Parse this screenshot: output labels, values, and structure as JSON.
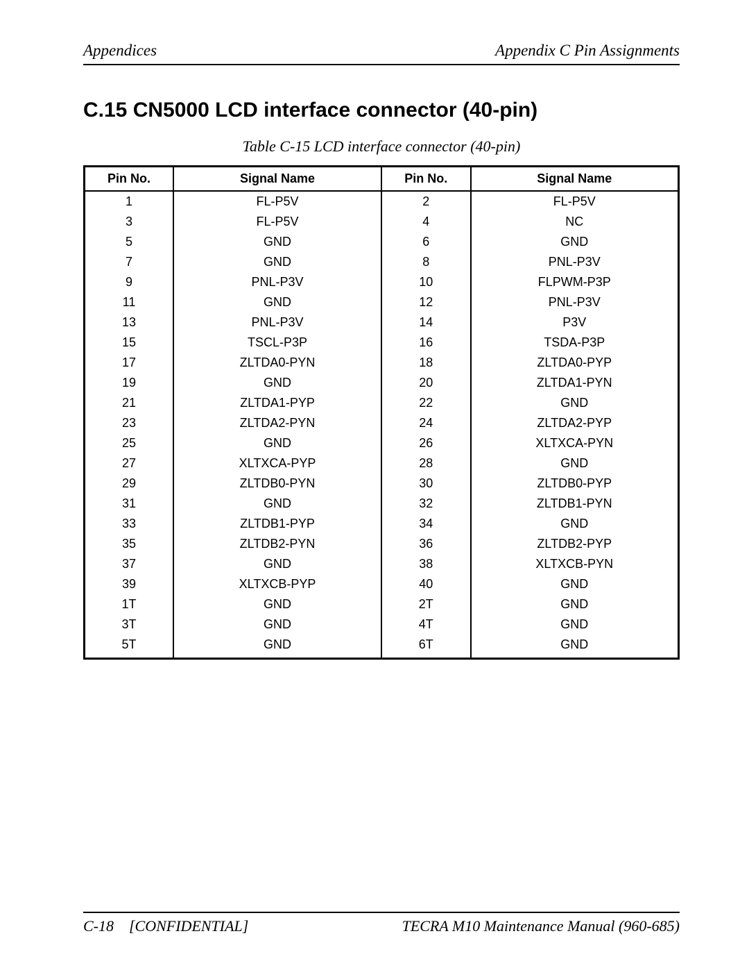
{
  "header": {
    "left": "Appendices",
    "right": "Appendix C  Pin Assignments"
  },
  "section": {
    "title": "C.15  CN5000  LCD interface connector (40-pin)"
  },
  "table": {
    "caption": "Table C-15 LCD interface connector  (40-pin)",
    "columns": [
      "Pin No.",
      "Signal Name",
      "Pin No.",
      "Signal Name"
    ],
    "rows": [
      [
        "1",
        "FL-P5V",
        "2",
        "FL-P5V"
      ],
      [
        "3",
        "FL-P5V",
        "4",
        "NC"
      ],
      [
        "5",
        "GND",
        "6",
        "GND"
      ],
      [
        "7",
        "GND",
        "8",
        "PNL-P3V"
      ],
      [
        "9",
        "PNL-P3V",
        "10",
        "FLPWM-P3P"
      ],
      [
        "11",
        "GND",
        "12",
        "PNL-P3V"
      ],
      [
        "13",
        "PNL-P3V",
        "14",
        "P3V"
      ],
      [
        "15",
        "TSCL-P3P",
        "16",
        "TSDA-P3P"
      ],
      [
        "17",
        "ZLTDA0-PYN",
        "18",
        "ZLTDA0-PYP"
      ],
      [
        "19",
        "GND",
        "20",
        "ZLTDA1-PYN"
      ],
      [
        "21",
        "ZLTDA1-PYP",
        "22",
        "GND"
      ],
      [
        "23",
        "ZLTDA2-PYN",
        "24",
        "ZLTDA2-PYP"
      ],
      [
        "25",
        "GND",
        "26",
        "XLTXCA-PYN"
      ],
      [
        "27",
        "XLTXCA-PYP",
        "28",
        "GND"
      ],
      [
        "29",
        "ZLTDB0-PYN",
        "30",
        "ZLTDB0-PYP"
      ],
      [
        "31",
        "GND",
        "32",
        "ZLTDB1-PYN"
      ],
      [
        "33",
        "ZLTDB1-PYP",
        "34",
        "GND"
      ],
      [
        "35",
        "ZLTDB2-PYN",
        "36",
        "ZLTDB2-PYP"
      ],
      [
        "37",
        "GND",
        "38",
        "XLTXCB-PYN"
      ],
      [
        "39",
        "XLTXCB-PYP",
        "40",
        "GND"
      ],
      [
        "1T",
        "GND",
        "2T",
        "GND"
      ],
      [
        "3T",
        "GND",
        "4T",
        "GND"
      ],
      [
        "5T",
        "GND",
        "6T",
        "GND"
      ]
    ]
  },
  "footer": {
    "page": "C-18",
    "confidential": "[CONFIDENTIAL]",
    "manual": "TECRA M10 Maintenance Manual (960-685)"
  }
}
